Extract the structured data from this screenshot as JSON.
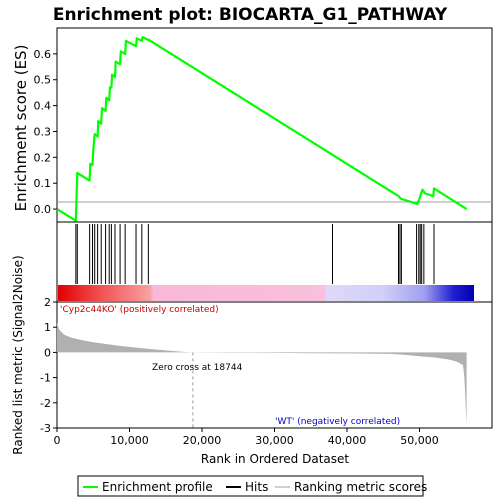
{
  "colors": {
    "enrichment_line": "#00ff00",
    "hits": "#000000",
    "metric_fill": "#b0b0b0",
    "positive_text": "#cc0000",
    "negative_text": "#0000cc",
    "zero_cross_line": "#999999"
  },
  "legend": {
    "items": [
      {
        "label": "Enrichment profile",
        "icon": "green-line-icon"
      },
      {
        "label": "Hits",
        "icon": "black-tick-icon"
      },
      {
        "label": "Ranking metric scores",
        "icon": "gray-line-icon"
      }
    ]
  },
  "annotations": {
    "positive": "'Cyp2c44KO' (positively correlated)",
    "negative": "'WT' (negatively correlated)",
    "zero_cross": "Zero cross at 18744"
  },
  "chart_data": [
    {
      "id": "enrichment",
      "type": "line",
      "title": "Enrichment plot: BIOCARTA_G1_PATHWAY",
      "ylabel": "Enrichment score (ES)",
      "xlim": [
        0,
        60000
      ],
      "ylim": [
        -0.05,
        0.7
      ],
      "yticks": [
        "0.0",
        "0.1",
        "0.2",
        "0.3",
        "0.4",
        "0.5",
        "0.6"
      ],
      "ytick_values": [
        0.0,
        0.1,
        0.2,
        0.3,
        0.4,
        0.5,
        0.6
      ],
      "grid": false,
      "series": [
        {
          "x": [
            0,
            2600,
            2700,
            2800,
            4500,
            4600,
            4900,
            5000,
            5200,
            5600,
            5700,
            6100,
            6200,
            6700,
            6800,
            7200,
            7300,
            7500,
            7600,
            8000,
            8100,
            8700,
            8800,
            9400,
            9500,
            10900,
            11000,
            11700,
            11800,
            12500,
            12600,
            47100,
            47400,
            49700,
            50000,
            50400,
            50800,
            51900,
            52000,
            56500
          ],
          "y": [
            0.0,
            -0.045,
            0.05,
            0.14,
            0.11,
            0.175,
            0.17,
            0.23,
            0.29,
            0.28,
            0.34,
            0.33,
            0.39,
            0.38,
            0.43,
            0.42,
            0.47,
            0.47,
            0.52,
            0.51,
            0.57,
            0.56,
            0.61,
            0.6,
            0.65,
            0.63,
            0.66,
            0.65,
            0.665,
            0.655,
            0.655,
            0.05,
            0.04,
            0.02,
            0.04,
            0.075,
            0.06,
            0.05,
            0.08,
            0.0
          ]
        }
      ]
    },
    {
      "id": "hits",
      "type": "scatter",
      "xlim": [
        0,
        60000
      ],
      "series": [
        {
          "x": [
            2600,
            2800,
            4500,
            4900,
            5200,
            5600,
            6100,
            6700,
            7200,
            7500,
            8000,
            8700,
            9400,
            10900,
            11700,
            12600,
            38000,
            47100,
            47300,
            47500,
            49600,
            49900,
            50100,
            50300,
            50600,
            52000
          ]
        }
      ]
    },
    {
      "id": "ranked_metric",
      "type": "area",
      "xlabel": "Rank in Ordered Dataset",
      "ylabel": "Ranked list metric (Signal2Noise)",
      "xlim": [
        0,
        60000
      ],
      "ylim": [
        -3,
        2
      ],
      "xticks": [
        "0",
        "10,000",
        "20,000",
        "30,000",
        "40,000",
        "50,000"
      ],
      "xtick_values": [
        0,
        10000,
        20000,
        30000,
        40000,
        50000
      ],
      "yticks": [
        "-3",
        "-2",
        "-1",
        "0",
        "1",
        "2"
      ],
      "ytick_values": [
        -3,
        -2,
        -1,
        0,
        1,
        2
      ],
      "zero_cross": 18744,
      "series": [
        {
          "x": [
            0,
            300,
            1000,
            2000,
            3500,
            5000,
            7000,
            9000,
            11000,
            13000,
            15000,
            17000,
            18744,
            19000,
            25000,
            30000,
            35000,
            40000,
            46000,
            48000,
            50000,
            52000,
            54000,
            55000,
            56000,
            56200,
            56500
          ],
          "y": [
            1.2,
            0.9,
            0.7,
            0.58,
            0.48,
            0.4,
            0.32,
            0.25,
            0.19,
            0.13,
            0.08,
            0.03,
            0.0,
            -0.005,
            -0.01,
            -0.02,
            -0.03,
            -0.04,
            -0.06,
            -0.1,
            -0.15,
            -0.2,
            -0.28,
            -0.35,
            -0.5,
            -1.0,
            -2.9
          ]
        }
      ]
    }
  ]
}
